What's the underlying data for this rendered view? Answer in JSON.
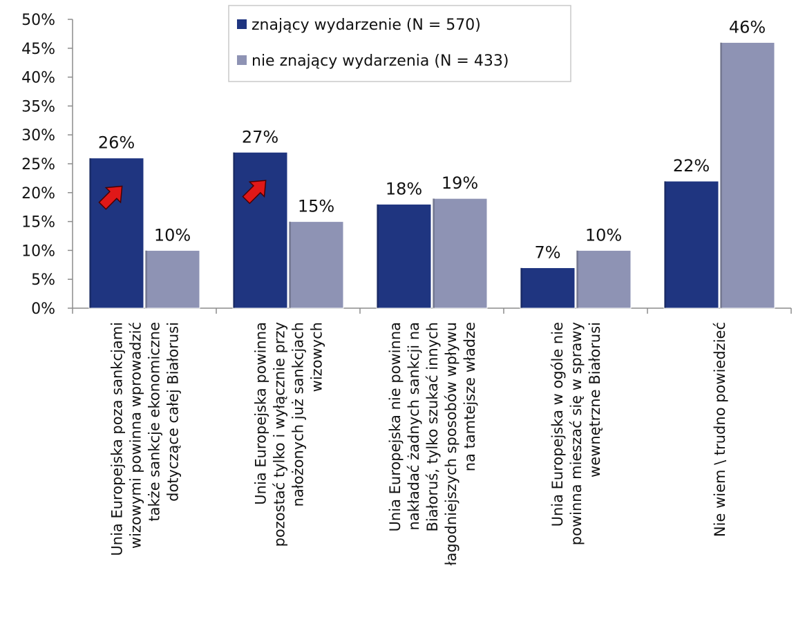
{
  "chart_data": {
    "type": "bar",
    "title": "",
    "xlabel": "",
    "ylabel": "",
    "ylim": [
      0,
      50
    ],
    "y_ticks": [
      "0%",
      "5%",
      "10%",
      "15%",
      "20%",
      "25%",
      "30%",
      "35%",
      "40%",
      "45%",
      "50%"
    ],
    "y_tick_values": [
      0,
      5,
      10,
      15,
      20,
      25,
      30,
      35,
      40,
      45,
      50
    ],
    "grid": false,
    "legend_position": "top",
    "categories": [
      [
        "Unia Europejska poza sankcjami",
        "wizowymi powinna wprowadzić",
        "także sankcje ekonomiczne",
        "dotyczące całej Białorusi"
      ],
      [
        "Unia Europejska powinna",
        "pozostać tylko i wyłącznie przy",
        "nałożonych już sankcjach",
        "wizowych"
      ],
      [
        "Unia Europejska nie powinna",
        "nakładać żadnych sankcji na",
        "Białoruś, tylko szukać innych",
        "łagodniejszych sposobów wpływu",
        "na tamtejsze władze"
      ],
      [
        "Unia Europejska w ogóle nie",
        "powinna mieszać się w sprawy",
        "wewnętrzne Białorusi"
      ],
      [
        "Nie wiem \\ trudno powiedzieć"
      ]
    ],
    "series": [
      {
        "name": "znający wydarzenie (N = 570)",
        "color": "#1f3580",
        "values": [
          26,
          27,
          18,
          7,
          22
        ],
        "labels": [
          "26%",
          "27%",
          "18%",
          "7%",
          "22%"
        ]
      },
      {
        "name": "nie znający wydarzenia (N = 433)",
        "color": "#8e93b4",
        "values": [
          10,
          15,
          19,
          10,
          46
        ],
        "labels": [
          "10%",
          "15%",
          "19%",
          "10%",
          "46%"
        ]
      }
    ],
    "annotations": [
      {
        "type": "red-arrow-icon",
        "category_index": 0,
        "series_index": 0,
        "direction": "up-right"
      },
      {
        "type": "red-arrow-icon",
        "category_index": 1,
        "series_index": 0,
        "direction": "up-right"
      }
    ],
    "arrow_color": "#e01818"
  }
}
